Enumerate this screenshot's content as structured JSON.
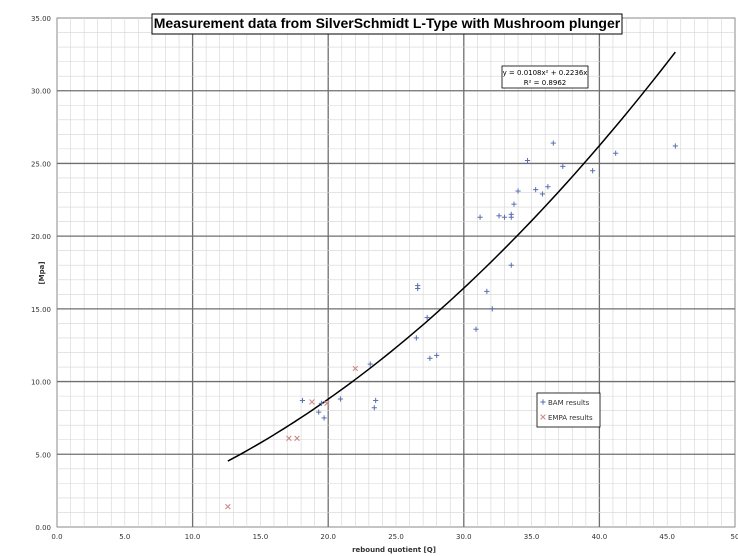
{
  "chart_data": {
    "type": "scatter",
    "title": "Measurement data from SilverSchmidt L-Type with Mushroom plunger",
    "xlabel": "rebound quotient [Q]",
    "ylabel": "[Mpa]",
    "xlim": [
      0,
      50
    ],
    "ylim": [
      0,
      35
    ],
    "x_ticks": [
      "0.0",
      "5.0",
      "10.0",
      "15.0",
      "20.0",
      "25.0",
      "30.0",
      "35.0",
      "40.0",
      "45.0",
      "50"
    ],
    "y_ticks": [
      "0.00",
      "5.00",
      "10.00",
      "15.00",
      "20.00",
      "25.00",
      "30.00",
      "35.00"
    ],
    "grid": true,
    "legend_position": "lower-right",
    "series": [
      {
        "name": "BAM results",
        "marker": "plus",
        "color": "#5a6fb0",
        "points": [
          [
            18.1,
            8.7
          ],
          [
            19.3,
            7.9
          ],
          [
            19.5,
            8.5
          ],
          [
            19.7,
            7.5
          ],
          [
            20.9,
            8.8
          ],
          [
            23.1,
            11.2
          ],
          [
            23.4,
            8.2
          ],
          [
            23.5,
            8.7
          ],
          [
            26.6,
            16.6
          ],
          [
            26.6,
            16.4
          ],
          [
            26.5,
            13.0
          ],
          [
            27.3,
            14.4
          ],
          [
            27.5,
            11.6
          ],
          [
            28.0,
            11.8
          ],
          [
            30.9,
            13.6
          ],
          [
            31.2,
            21.3
          ],
          [
            31.7,
            16.2
          ],
          [
            32.1,
            15.0
          ],
          [
            32.6,
            21.4
          ],
          [
            33.0,
            21.3
          ],
          [
            33.5,
            21.5
          ],
          [
            33.5,
            21.3
          ],
          [
            33.5,
            18.0
          ],
          [
            33.7,
            22.2
          ],
          [
            34.0,
            23.1
          ],
          [
            34.7,
            25.2
          ],
          [
            35.3,
            23.2
          ],
          [
            35.8,
            22.9
          ],
          [
            36.2,
            23.4
          ],
          [
            36.6,
            26.4
          ],
          [
            37.3,
            24.8
          ],
          [
            39.5,
            24.5
          ],
          [
            41.2,
            25.7
          ],
          [
            45.6,
            26.2
          ]
        ]
      },
      {
        "name": "EMPA results",
        "marker": "x",
        "color": "#d08a8a",
        "points": [
          [
            12.6,
            1.4
          ],
          [
            17.1,
            6.1
          ],
          [
            17.7,
            6.1
          ],
          [
            18.8,
            8.6
          ],
          [
            19.9,
            8.5
          ],
          [
            22.0,
            10.9
          ]
        ]
      }
    ],
    "trendline": {
      "type": "polynomial",
      "a": 0.0108,
      "b": 0.2236,
      "x_range": [
        12.6,
        45.6
      ],
      "equation_label": "y = 0.0108x² + 0.2236x",
      "r2_label": "R² = 0.8962"
    }
  }
}
